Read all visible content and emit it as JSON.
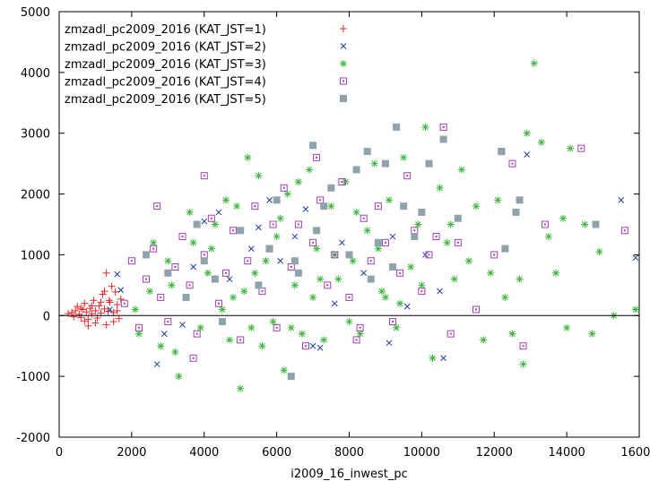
{
  "chart_data": {
    "type": "scatter",
    "title": "",
    "xlabel": "i2009_16_inwest_pc",
    "ylabel": "",
    "xlim": [
      0,
      16000
    ],
    "ylim": [
      -2000,
      5000
    ],
    "xticks": [
      "0",
      "2000",
      "4000",
      "6000",
      "8000",
      "10000",
      "12000",
      "14000",
      "16000"
    ],
    "yticks": [
      "-2000",
      "-1000",
      "0",
      "1000",
      "2000",
      "3000",
      "4000",
      "5000"
    ],
    "grid": false,
    "legend_position": "top-left",
    "zero_line": true,
    "series": [
      {
        "name": "zmzadl_pc2009_2016 (KAT_JST=1)",
        "color": "#e8262b",
        "marker": "plus",
        "points": [
          [
            250,
            30
          ],
          [
            350,
            50
          ],
          [
            400,
            -20
          ],
          [
            450,
            80
          ],
          [
            500,
            150
          ],
          [
            550,
            20
          ],
          [
            600,
            -30
          ],
          [
            650,
            100
          ],
          [
            700,
            200
          ],
          [
            750,
            60
          ],
          [
            800,
            -60
          ],
          [
            850,
            120
          ],
          [
            900,
            30
          ],
          [
            950,
            250
          ],
          [
            1000,
            80
          ],
          [
            1050,
            -40
          ],
          [
            1100,
            160
          ],
          [
            1150,
            40
          ],
          [
            1200,
            350
          ],
          [
            1250,
            110
          ],
          [
            1300,
            -150
          ],
          [
            1350,
            70
          ],
          [
            1400,
            220
          ],
          [
            1450,
            480
          ],
          [
            1500,
            50
          ],
          [
            1550,
            390
          ],
          [
            1600,
            180
          ],
          [
            1650,
            -50
          ],
          [
            1700,
            270
          ],
          [
            1300,
            700
          ],
          [
            1380,
            250
          ],
          [
            800,
            -170
          ],
          [
            1000,
            -120
          ],
          [
            600,
            120
          ],
          [
            700,
            -90
          ],
          [
            1150,
            220
          ],
          [
            900,
            160
          ],
          [
            1250,
            400
          ],
          [
            1500,
            -100
          ],
          [
            1600,
            80
          ]
        ]
      },
      {
        "name": "zmzadl_pc2009_2016 (KAT_JST=2)",
        "color": "#1f3fa0",
        "marker": "x",
        "points": [
          [
            1600,
            680
          ],
          [
            1700,
            420
          ],
          [
            2700,
            -800
          ],
          [
            3400,
            -150
          ],
          [
            4000,
            1550
          ],
          [
            4400,
            1700
          ],
          [
            5300,
            1100
          ],
          [
            5500,
            1450
          ],
          [
            5800,
            1900
          ],
          [
            6100,
            900
          ],
          [
            6500,
            1300
          ],
          [
            7000,
            -500
          ],
          [
            7200,
            -530
          ],
          [
            7600,
            200
          ],
          [
            8400,
            700
          ],
          [
            9200,
            1300
          ],
          [
            9100,
            -450
          ],
          [
            9600,
            150
          ],
          [
            10100,
            1000
          ],
          [
            10500,
            400
          ],
          [
            12900,
            2650
          ],
          [
            15500,
            1900
          ],
          [
            15900,
            950
          ],
          [
            1400,
            100
          ],
          [
            2900,
            -300
          ],
          [
            3700,
            800
          ],
          [
            4700,
            600
          ],
          [
            6800,
            1750
          ],
          [
            7800,
            1200
          ],
          [
            10600,
            -700
          ]
        ]
      },
      {
        "name": "zmzadl_pc2009_2016 (KAT_JST=3)",
        "color": "#3bb63b",
        "marker": "star",
        "points": [
          [
            2200,
            -300
          ],
          [
            2500,
            400
          ],
          [
            2800,
            -500
          ],
          [
            3000,
            900
          ],
          [
            3200,
            -600
          ],
          [
            3500,
            300
          ],
          [
            3700,
            1200
          ],
          [
            3900,
            -200
          ],
          [
            4100,
            700
          ],
          [
            4300,
            1500
          ],
          [
            4500,
            100
          ],
          [
            4700,
            -400
          ],
          [
            4900,
            1800
          ],
          [
            5100,
            400
          ],
          [
            5300,
            -200
          ],
          [
            5500,
            2300
          ],
          [
            5700,
            900
          ],
          [
            5900,
            -100
          ],
          [
            6100,
            1600
          ],
          [
            6300,
            2000
          ],
          [
            6500,
            500
          ],
          [
            6700,
            -300
          ],
          [
            6900,
            2400
          ],
          [
            7100,
            1100
          ],
          [
            7300,
            -400
          ],
          [
            7500,
            1800
          ],
          [
            7700,
            600
          ],
          [
            7900,
            2200
          ],
          [
            8100,
            900
          ],
          [
            8300,
            -300
          ],
          [
            8500,
            1400
          ],
          [
            8700,
            2500
          ],
          [
            8900,
            400
          ],
          [
            9100,
            1900
          ],
          [
            9300,
            -200
          ],
          [
            9500,
            2600
          ],
          [
            9700,
            800
          ],
          [
            9900,
            1500
          ],
          [
            10100,
            3100
          ],
          [
            10300,
            -700
          ],
          [
            10500,
            2100
          ],
          [
            10700,
            1200
          ],
          [
            10900,
            600
          ],
          [
            11100,
            2400
          ],
          [
            11300,
            900
          ],
          [
            11500,
            1800
          ],
          [
            11700,
            -400
          ],
          [
            11900,
            700
          ],
          [
            12100,
            1900
          ],
          [
            12500,
            -300
          ],
          [
            12700,
            600
          ],
          [
            12900,
            3000
          ],
          [
            13100,
            4150
          ],
          [
            13300,
            2850
          ],
          [
            13500,
            1300
          ],
          [
            13700,
            700
          ],
          [
            13900,
            1600
          ],
          [
            14100,
            2750
          ],
          [
            14500,
            1500
          ],
          [
            14900,
            1050
          ],
          [
            15300,
            0
          ],
          [
            15900,
            100
          ],
          [
            5200,
            2600
          ],
          [
            2100,
            100
          ],
          [
            3300,
            -1000
          ],
          [
            3600,
            1700
          ],
          [
            4200,
            1100
          ],
          [
            4800,
            300
          ],
          [
            5400,
            700
          ],
          [
            6000,
            1300
          ],
          [
            6400,
            -200
          ],
          [
            7000,
            300
          ],
          [
            7600,
            1000
          ],
          [
            8200,
            1700
          ],
          [
            8800,
            1100
          ],
          [
            9400,
            200
          ],
          [
            10000,
            500
          ],
          [
            10800,
            1500
          ],
          [
            12300,
            300
          ],
          [
            12800,
            -800
          ],
          [
            14000,
            -200
          ],
          [
            14700,
            -300
          ],
          [
            5000,
            -1200
          ],
          [
            6200,
            -900
          ],
          [
            2600,
            1200
          ],
          [
            3100,
            500
          ],
          [
            4600,
            1900
          ],
          [
            5600,
            -500
          ],
          [
            6600,
            2200
          ],
          [
            7200,
            600
          ],
          [
            8000,
            -100
          ],
          [
            9000,
            300
          ]
        ]
      },
      {
        "name": "zmzadl_pc2009_2016 (KAT_JST=4)",
        "color": "#a040b0",
        "marker": "square-open",
        "points": [
          [
            1800,
            200
          ],
          [
            2000,
            900
          ],
          [
            2200,
            -200
          ],
          [
            2400,
            600
          ],
          [
            2600,
            1100
          ],
          [
            2800,
            300
          ],
          [
            3000,
            -100
          ],
          [
            3200,
            800
          ],
          [
            3400,
            1300
          ],
          [
            3600,
            500
          ],
          [
            3800,
            -300
          ],
          [
            4000,
            1000
          ],
          [
            4200,
            1600
          ],
          [
            4400,
            200
          ],
          [
            4600,
            700
          ],
          [
            4800,
            1400
          ],
          [
            5000,
            -400
          ],
          [
            5200,
            900
          ],
          [
            5400,
            1800
          ],
          [
            5600,
            400
          ],
          [
            5800,
            1100
          ],
          [
            6000,
            -200
          ],
          [
            6200,
            2100
          ],
          [
            6400,
            800
          ],
          [
            6600,
            1500
          ],
          [
            6800,
            -500
          ],
          [
            7000,
            1200
          ],
          [
            7200,
            1900
          ],
          [
            7400,
            500
          ],
          [
            7600,
            1000
          ],
          [
            7800,
            2200
          ],
          [
            8000,
            300
          ],
          [
            8200,
            -400
          ],
          [
            8400,
            1600
          ],
          [
            8600,
            900
          ],
          [
            8800,
            1800
          ],
          [
            9000,
            1200
          ],
          [
            9200,
            -100
          ],
          [
            9400,
            700
          ],
          [
            9600,
            2300
          ],
          [
            9800,
            1400
          ],
          [
            10000,
            400
          ],
          [
            10200,
            1000
          ],
          [
            10400,
            1300
          ],
          [
            10600,
            3100
          ],
          [
            10800,
            -300
          ],
          [
            11000,
            1200
          ],
          [
            11500,
            100
          ],
          [
            12000,
            1000
          ],
          [
            12200,
            2700
          ],
          [
            12500,
            2500
          ],
          [
            12800,
            -500
          ],
          [
            13400,
            1500
          ],
          [
            14400,
            2750
          ],
          [
            15600,
            1400
          ],
          [
            2700,
            1800
          ],
          [
            4000,
            2300
          ],
          [
            3700,
            -700
          ],
          [
            5900,
            1500
          ],
          [
            7100,
            2600
          ],
          [
            8300,
            -200
          ]
        ]
      },
      {
        "name": "zmzadl_pc2009_2016 (KAT_JST=5)",
        "color": "#8fa3ab",
        "marker": "square-filled",
        "points": [
          [
            2400,
            1000
          ],
          [
            3000,
            700
          ],
          [
            3500,
            300
          ],
          [
            4000,
            900
          ],
          [
            4500,
            -100
          ],
          [
            5000,
            1400
          ],
          [
            5500,
            500
          ],
          [
            6000,
            1900
          ],
          [
            6400,
            -1000
          ],
          [
            6500,
            900
          ],
          [
            7000,
            2800
          ],
          [
            7100,
            1400
          ],
          [
            7500,
            2100
          ],
          [
            8000,
            1000
          ],
          [
            8200,
            2400
          ],
          [
            8500,
            2700
          ],
          [
            8800,
            1200
          ],
          [
            9000,
            2500
          ],
          [
            9300,
            3100
          ],
          [
            9500,
            1800
          ],
          [
            9800,
            1300
          ],
          [
            10200,
            2500
          ],
          [
            10600,
            2900
          ],
          [
            11000,
            1600
          ],
          [
            12200,
            2700
          ],
          [
            12300,
            1100
          ],
          [
            12600,
            1700
          ],
          [
            12700,
            1900
          ],
          [
            14800,
            1500
          ],
          [
            6600,
            700
          ],
          [
            7300,
            1800
          ],
          [
            5800,
            1100
          ],
          [
            4300,
            600
          ],
          [
            3800,
            1500
          ],
          [
            8600,
            600
          ],
          [
            9200,
            800
          ],
          [
            10000,
            1700
          ]
        ]
      }
    ]
  }
}
